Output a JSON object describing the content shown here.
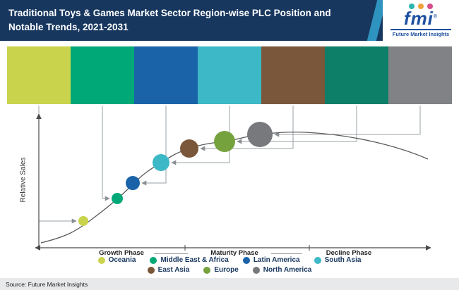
{
  "header": {
    "title_line1": "Traditional Toys & Games Market Sector Region-wise PLC Position and",
    "title_line2": "Notable Trends, 2021-2031"
  },
  "logo": {
    "wordmark": "fmi",
    "reg": "®",
    "tagline": "Future Market Insights",
    "icon_colors": {
      "pin": "#2bb5ae",
      "bell": "#f0a13a",
      "magnet": "#d64d8a"
    }
  },
  "chart": {
    "ylabel": "Relative Sales",
    "phases": [
      "Growth Phase",
      "Maturity Phase",
      "Decline Phase"
    ]
  },
  "regions": [
    {
      "name": "Oceania",
      "color": "#c9d44c"
    },
    {
      "name": "Middle East & Africa",
      "color": "#00a878"
    },
    {
      "name": "Latin America",
      "color": "#1a63a9"
    },
    {
      "name": "South Asia",
      "color": "#3cb8c6"
    },
    {
      "name": "East Asia",
      "color": "#7a573a"
    },
    {
      "name": "Europe",
      "color": "#76a23e",
      "block_color": "#0d7f68"
    },
    {
      "name": "North America",
      "color": "#77797c",
      "block_color": "#808285"
    }
  ],
  "footer": {
    "source": "Source: Future Market Insights"
  },
  "chart_data": {
    "type": "line",
    "title": "Traditional Toys & Games Market Sector Region-wise PLC Position and Notable Trends, 2021-2031",
    "ylabel": "Relative Sales",
    "x_phases": [
      "Growth Phase",
      "Maturity Phase",
      "Decline Phase"
    ],
    "curve": "product-life-cycle",
    "curve_points_normalized": [
      [
        0,
        0.02
      ],
      [
        0.1,
        0.1
      ],
      [
        0.2,
        0.3
      ],
      [
        0.3,
        0.52
      ],
      [
        0.35,
        0.62
      ],
      [
        0.4,
        0.7
      ],
      [
        0.48,
        0.76
      ],
      [
        0.56,
        0.8
      ],
      [
        0.68,
        0.81
      ],
      [
        0.85,
        0.72
      ],
      [
        1,
        0.6
      ]
    ],
    "bubbles": [
      {
        "region": "Oceania",
        "phase": "Growth Phase",
        "relative_sales": 0.18,
        "size_rank": 1
      },
      {
        "region": "Middle East & Africa",
        "phase": "Growth Phase",
        "relative_sales": 0.34,
        "size_rank": 2
      },
      {
        "region": "Latin America",
        "phase": "Growth Phase",
        "relative_sales": 0.45,
        "size_rank": 3
      },
      {
        "region": "South Asia",
        "phase": "Growth Phase",
        "relative_sales": 0.6,
        "size_rank": 4
      },
      {
        "region": "East Asia",
        "phase": "Maturity Phase",
        "relative_sales": 0.7,
        "size_rank": 5
      },
      {
        "region": "Europe",
        "phase": "Maturity Phase",
        "relative_sales": 0.75,
        "size_rank": 6
      },
      {
        "region": "North America",
        "phase": "Maturity Phase",
        "relative_sales": 0.8,
        "size_rank": 7
      }
    ],
    "legend_position": "bottom",
    "grid": false
  }
}
